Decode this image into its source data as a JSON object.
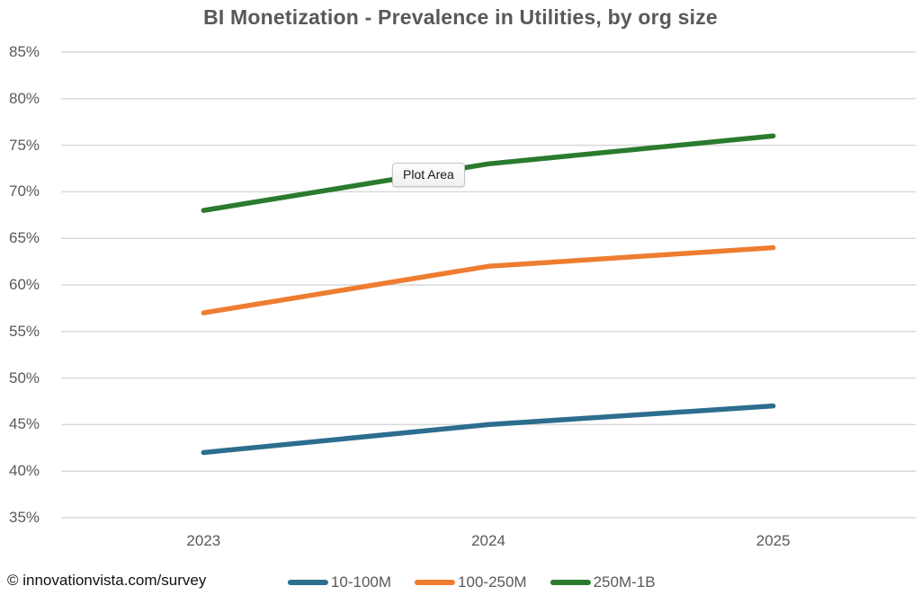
{
  "title": "BI Monetization - Prevalence in Utilities, by org size",
  "tooltip": {
    "label": "Plot Area"
  },
  "footer": {
    "copyright": "© innovationvista.com/survey"
  },
  "colors": {
    "blue": "#2d6d8e",
    "orange": "#ee7d31",
    "green": "#2a7b2e",
    "grid": "#d9d9d9",
    "axis_text": "#595959",
    "title_text": "#595959"
  },
  "chart_data": {
    "type": "line",
    "title": "BI Monetization - Prevalence in Utilities, by org size",
    "x": [
      "2023",
      "2024",
      "2025"
    ],
    "series": [
      {
        "name": "10-100M",
        "color_key": "blue",
        "values": [
          42,
          45,
          47
        ]
      },
      {
        "name": "100-250M",
        "color_key": "orange",
        "values": [
          57,
          62,
          64
        ]
      },
      {
        "name": "250M-1B",
        "color_key": "green",
        "values": [
          68,
          73,
          76
        ]
      }
    ],
    "ylim": [
      35,
      85
    ],
    "ytick_step": 5,
    "ytick_suffix": "%",
    "xlabel": "",
    "ylabel": "",
    "grid": "horizontal",
    "legend_position": "bottom"
  }
}
